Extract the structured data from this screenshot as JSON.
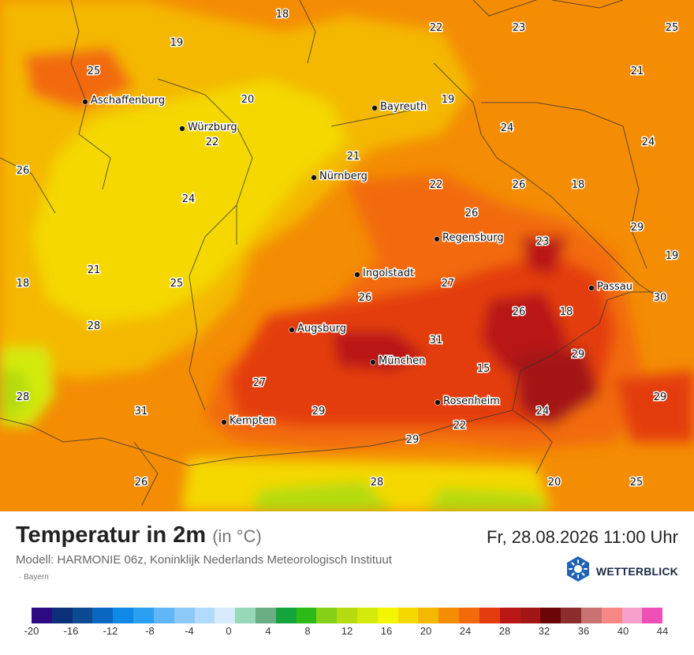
{
  "title": "Temperatur in 2m",
  "unit": "(in °C)",
  "datetime": "Fr, 28.08.2026 11:00 Uhr",
  "model": "Modell: HARMONIE 06z, Koninklijk Nederlands Meteorologisch Instituut",
  "region": "Bayern",
  "brand": "WETTERBLICK",
  "brand_icon": "sun-snowflake-hexagon-icon",
  "cities": [
    {
      "name": "Aschaffenburg"
    },
    {
      "name": "Würzburg"
    },
    {
      "name": "Bayreuth"
    },
    {
      "name": "Nürnberg"
    },
    {
      "name": "Regensburg"
    },
    {
      "name": "Ingolstadt"
    },
    {
      "name": "Passau"
    },
    {
      "name": "Augsburg"
    },
    {
      "name": "München"
    },
    {
      "name": "Rosenheim"
    },
    {
      "name": "Kempten"
    }
  ],
  "values": [
    "18",
    "22",
    "23",
    "25",
    "19",
    "25",
    "21",
    "20",
    "19",
    "24",
    "22",
    "24",
    "21",
    "26",
    "22",
    "26",
    "18",
    "24",
    "26",
    "29",
    "23",
    "19",
    "21",
    "18",
    "25",
    "27",
    "26",
    "30",
    "26",
    "18",
    "28",
    "31",
    "29",
    "15",
    "28",
    "27",
    "29",
    "31",
    "29",
    "24",
    "22",
    "29",
    "26",
    "28",
    "20",
    "25"
  ],
  "legend": {
    "colors": [
      "#2b0a82",
      "#0b2f78",
      "#0c4a92",
      "#0b68c0",
      "#1088e6",
      "#2ba0f2",
      "#60b6f6",
      "#8cc8f8",
      "#b2dafa",
      "#d7ebfc",
      "#96d8b8",
      "#6aae84",
      "#14a43c",
      "#2dba18",
      "#86d018",
      "#b4dc10",
      "#d4ea0a",
      "#f4f600",
      "#f4d800",
      "#f4b800",
      "#f48c04",
      "#f26a0c",
      "#e43c0e",
      "#b91616",
      "#a41616",
      "#6c0606",
      "#8c2c2c",
      "#c87272",
      "#f88888",
      "#f8a0cc",
      "#ee50b8"
    ],
    "labels": [
      "-20",
      "-16",
      "-12",
      "-8",
      "-4",
      "0",
      "4",
      "8",
      "12",
      "16",
      "20",
      "24",
      "28",
      "32",
      "36",
      "40",
      "44"
    ]
  }
}
